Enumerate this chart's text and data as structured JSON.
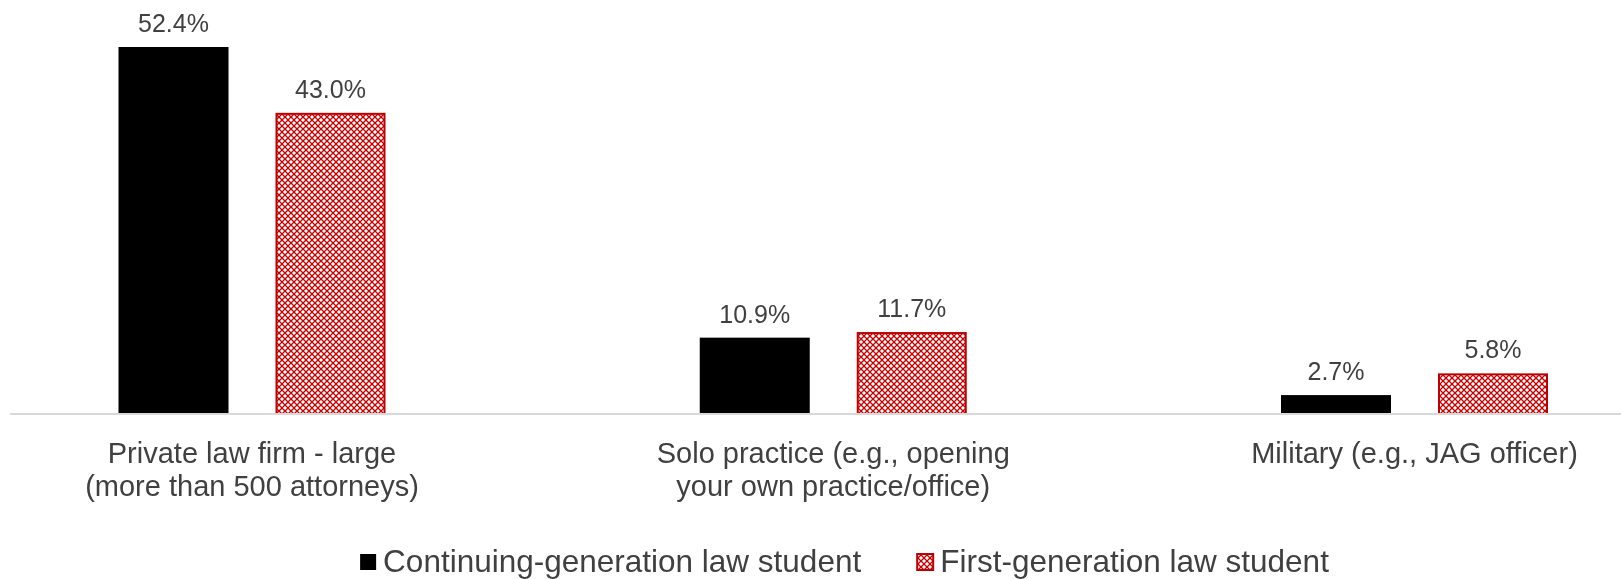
{
  "chart_data": {
    "type": "bar",
    "categories": [
      "Private law firm - large (more than 500 attorneys)",
      "Solo practice (e.g., opening your own practice/office)",
      "Military (e.g., JAG officer)"
    ],
    "series": [
      {
        "name": "Continuing-generation law student",
        "color": "#000000",
        "values": [
          52.4,
          10.9,
          2.7
        ],
        "value_labels": [
          "52.4%",
          "10.9%",
          "2.7%"
        ]
      },
      {
        "name": "First-generation law student",
        "color": "#c00000",
        "values": [
          43.0,
          11.7,
          5.8
        ],
        "value_labels": [
          "43.0%",
          "11.7%",
          "5.8%"
        ]
      }
    ],
    "legend": "bottom"
  }
}
